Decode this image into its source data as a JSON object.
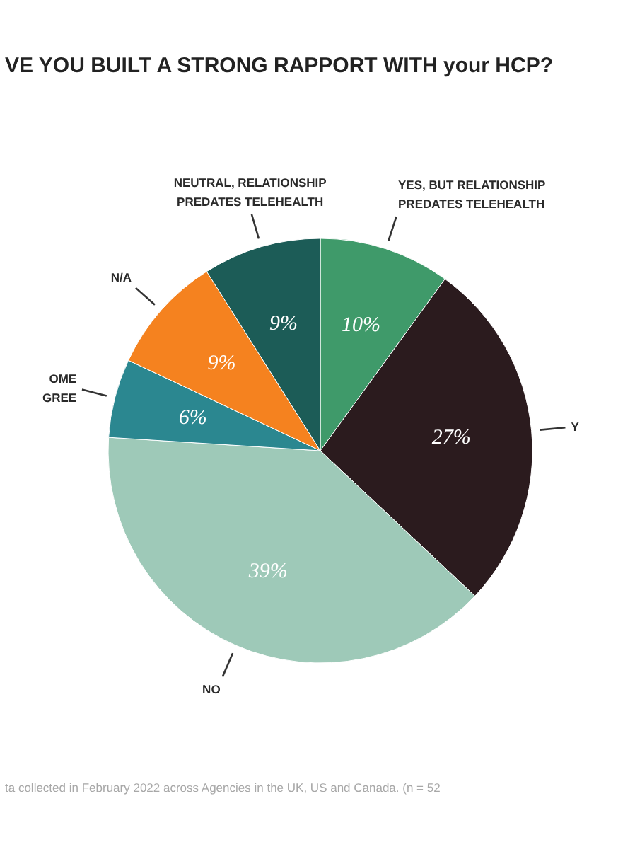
{
  "chart_data": {
    "type": "pie",
    "title": "VE YOU BUILT A STRONG RAPPORT WITH your HCP?",
    "categories": [
      "YES, BUT RELATIONSHIP PREDATES TELEHEALTH",
      "Y",
      "NO",
      "OME GREE",
      "N/A",
      "NEUTRAL, RELATIONSHIP PREDATES TELEHEALTH"
    ],
    "values": [
      10,
      27,
      39,
      6,
      9,
      9
    ],
    "colors": [
      "#3f9a6a",
      "#2b1b1e",
      "#9ec9b8",
      "#2b8790",
      "#f5821f",
      "#1c5c57"
    ],
    "value_labels": [
      "10%",
      "27%",
      "39%",
      "6%",
      "9%",
      "9%"
    ],
    "annotations": [
      "ta collected in February 2022 across Agencies in the UK, US and Canada. (n = 52"
    ]
  }
}
